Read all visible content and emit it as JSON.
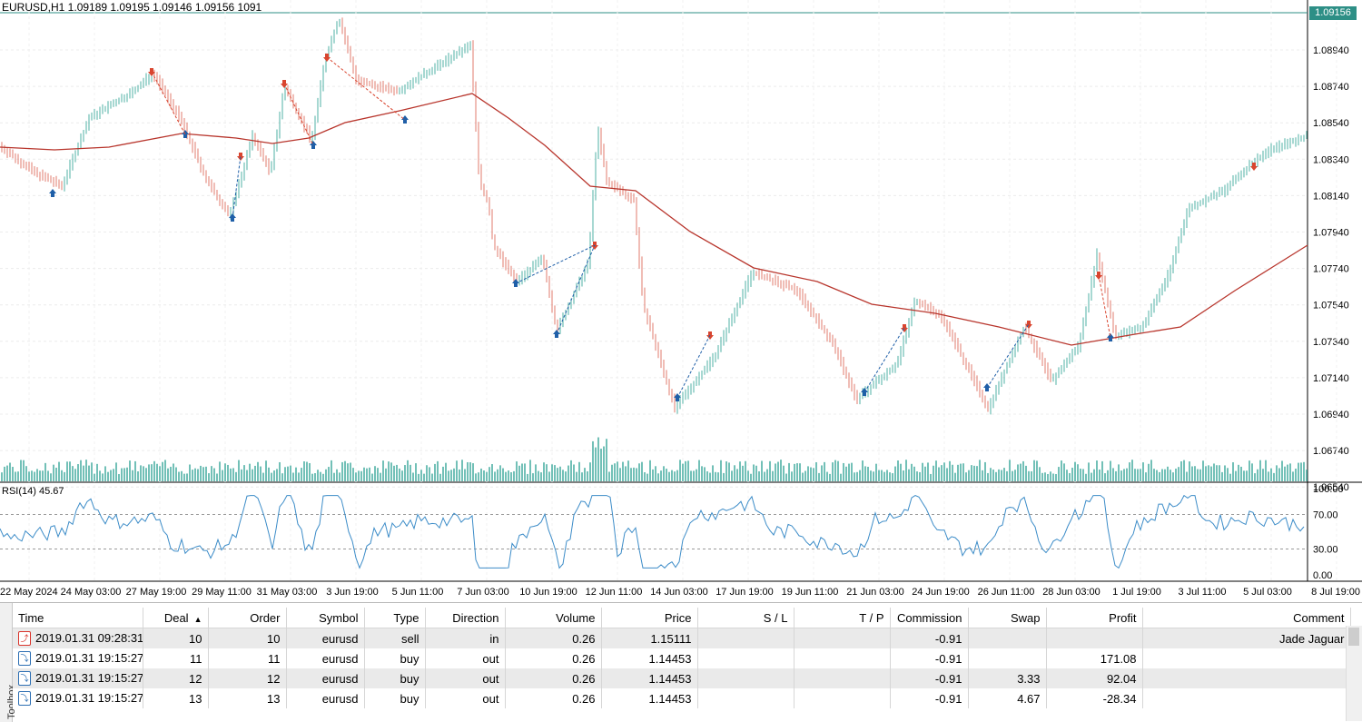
{
  "chart": {
    "symbol_info": "EURUSD,H1  1.09189 1.09195 1.09146 1.09156  1091",
    "current_price": "1.09156",
    "price_labels": [
      "1.08940",
      "1.08740",
      "1.08540",
      "1.08340",
      "1.08140",
      "1.07940",
      "1.07740",
      "1.07540",
      "1.07340",
      "1.07140",
      "1.06940",
      "1.06740",
      "1.06540"
    ],
    "rsi_label": "RSI(14) 45.67",
    "rsi_labels": [
      "100.00",
      "70.00",
      "30.00",
      "0.00"
    ],
    "time_labels": [
      "22 May 2024",
      "24 May 03:00",
      "27 May 19:00",
      "29 May 11:00",
      "31 May 03:00",
      "3 Jun 19:00",
      "5 Jun 11:00",
      "7 Jun 03:00",
      "10 Jun 19:00",
      "12 Jun 11:00",
      "14 Jun 03:00",
      "17 Jun 19:00",
      "19 Jun 11:00",
      "21 Jun 03:00",
      "24 Jun 19:00",
      "26 Jun 11:00",
      "28 Jun 03:00",
      "1 Jul 19:00",
      "3 Jul 11:00",
      "5 Jul 03:00",
      "8 Jul 19:00"
    ],
    "colors": {
      "bull": "#4fb0a5",
      "bear": "#e07b6e",
      "ma": "#b8352c",
      "buy_arrow": "#1f5fa8",
      "sell_arrow": "#d9452f",
      "rsi": "#3c8cc8",
      "volume": "#4fb0a5"
    }
  },
  "terminal": {
    "toolbox_label": "Toolbox",
    "columns": [
      "Time",
      "Deal",
      "Order",
      "Symbol",
      "Type",
      "Direction",
      "Volume",
      "Price",
      "S / L",
      "T / P",
      "Commission",
      "Swap",
      "Profit",
      "Comment"
    ],
    "rows": [
      {
        "time": "2019.01.31 09:28:31",
        "deal": "10",
        "order": "10",
        "symbol": "eurusd",
        "type": "sell",
        "direction": "in",
        "volume": "0.26",
        "price": "1.15111",
        "sl": "",
        "tp": "",
        "commission": "-0.91",
        "swap": "",
        "profit": "",
        "comment": "Jade Jaguar"
      },
      {
        "time": "2019.01.31 19:15:27",
        "deal": "11",
        "order": "11",
        "symbol": "eurusd",
        "type": "buy",
        "direction": "out",
        "volume": "0.26",
        "price": "1.14453",
        "sl": "",
        "tp": "",
        "commission": "-0.91",
        "swap": "",
        "profit": "171.08",
        "comment": ""
      },
      {
        "time": "2019.01.31 19:15:27",
        "deal": "12",
        "order": "12",
        "symbol": "eurusd",
        "type": "buy",
        "direction": "out",
        "volume": "0.26",
        "price": "1.14453",
        "sl": "",
        "tp": "",
        "commission": "-0.91",
        "swap": "3.33",
        "profit": "92.04",
        "comment": ""
      },
      {
        "time": "2019.01.31 19:15:27",
        "deal": "13",
        "order": "13",
        "symbol": "eurusd",
        "type": "buy",
        "direction": "out",
        "volume": "0.26",
        "price": "1.14453",
        "sl": "",
        "tp": "",
        "commission": "-0.91",
        "swap": "4.67",
        "profit": "-28.34",
        "comment": ""
      }
    ]
  }
}
